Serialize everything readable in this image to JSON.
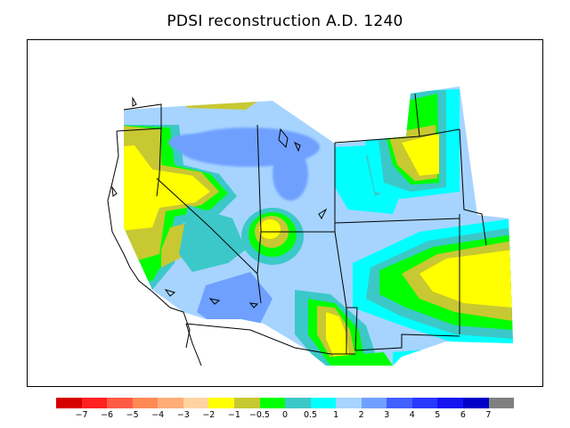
{
  "title": "PDSI reconstruction A.D. 1240",
  "colorbar": {
    "colors": [
      "#d70000",
      "#ff2020",
      "#ff5a44",
      "#ff8a55",
      "#ffae7a",
      "#ffd4a0",
      "#ffff00",
      "#c8c832",
      "#00ff00",
      "#3cc8c8",
      "#00ffff",
      "#a6d4ff",
      "#6fa0ff",
      "#4060ff",
      "#2838ff",
      "#1414f0",
      "#0000c8",
      "#808080"
    ],
    "tick_labels": [
      "−7",
      "−6",
      "−5",
      "−4",
      "−3",
      "−2",
      "−1",
      "−0.5",
      "0",
      "0.5",
      "1",
      "2",
      "3",
      "4",
      "5",
      "6",
      "7"
    ]
  },
  "map": {
    "region": "Western United States",
    "contour_colors": {
      "dry_moderate": "#ffff00",
      "dry_slight": "#c8c832",
      "near_normal": "#00ff00",
      "wet_slight": "#3cc8c8",
      "wet": "#00ffff",
      "wetter": "#a6d4ff",
      "wettest": "#6fa0ff"
    }
  }
}
